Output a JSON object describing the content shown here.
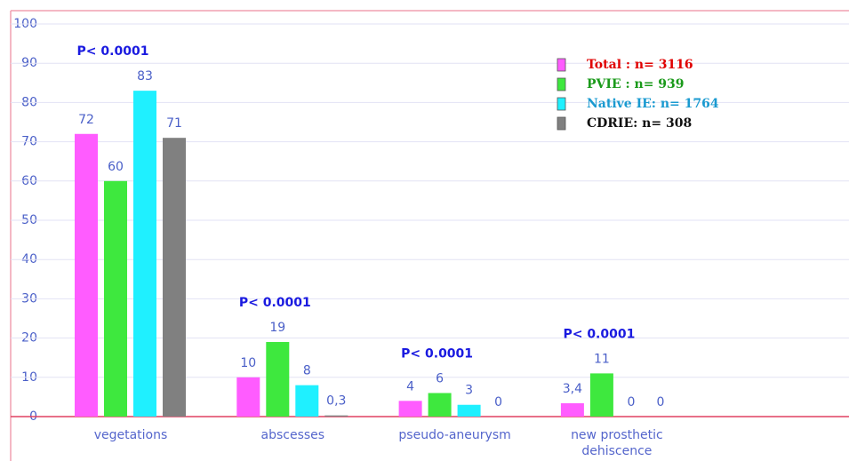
{
  "chart_data": {
    "type": "bar",
    "categories": [
      "vegetations",
      "abscesses",
      "pseudo-aneurysm",
      "new prosthetic dehiscence"
    ],
    "series": [
      {
        "name": "Total : n= 3116",
        "color": "#ff5cff",
        "label_color": "#e00000",
        "values": [
          72,
          10,
          4,
          3.4
        ],
        "value_labels": [
          "72",
          "10",
          "4",
          "3,4"
        ]
      },
      {
        "name": "PVIE : n= 939",
        "color": "#3ee83e",
        "label_color": "#1a9a1a",
        "values": [
          60,
          19,
          6,
          11
        ],
        "value_labels": [
          "60",
          "19",
          "6",
          "11"
        ]
      },
      {
        "name": "Native IE: n= 1764",
        "color": "#1ff0ff",
        "label_color": "#1a9ad0",
        "values": [
          83,
          8,
          3,
          0
        ],
        "value_labels": [
          "83",
          "8",
          "3",
          "0"
        ]
      },
      {
        "name": "CDRIE: n= 308",
        "color": "#808080",
        "label_color": "#111111",
        "values": [
          71,
          0.3,
          0,
          0
        ],
        "value_labels": [
          "71",
          "0,3",
          "0",
          "0"
        ]
      }
    ],
    "annotations": [
      "P< 0.0001",
      "P< 0.0001",
      "P< 0.0001",
      "P< 0.0001"
    ],
    "ylim": [
      0,
      100
    ],
    "yticks": [
      0,
      10,
      20,
      30,
      40,
      50,
      60,
      70,
      80,
      90,
      100
    ],
    "grid": true,
    "legend": "upper right"
  }
}
